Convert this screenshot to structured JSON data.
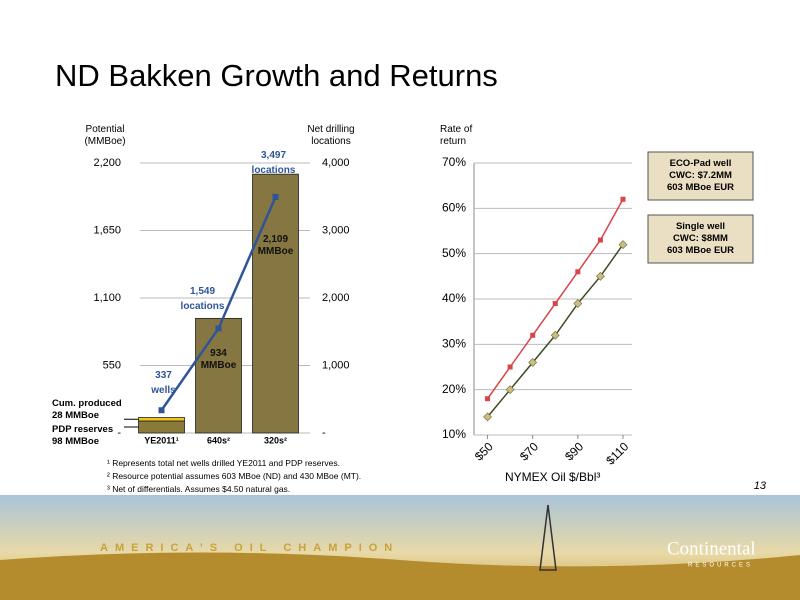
{
  "title": "ND Bakken Growth and Returns",
  "chart_data": [
    {
      "type": "bar",
      "ylabel": "Potential\n(MMBoe)",
      "y2label": "Net drilling\nlocations",
      "categories": [
        "YE2011¹",
        "640s²",
        "320s²"
      ],
      "ylim": [
        0,
        2200
      ],
      "yticks": [
        {
          "value": 0,
          "label": "-"
        },
        550,
        {
          "value": 1100,
          "label": "1,100"
        },
        {
          "value": 1650,
          "label": "1,650"
        },
        {
          "value": 2200,
          "label": "2,200"
        }
      ],
      "y2lim": [
        0,
        4000
      ],
      "y2ticks": [
        {
          "value": 0,
          "label": "-"
        },
        {
          "value": 1000,
          "label": "1,000"
        },
        {
          "value": 2000,
          "label": "2,000"
        },
        {
          "value": 3000,
          "label": "3,000"
        },
        {
          "value": 4000,
          "label": "4,000"
        }
      ],
      "grid": true,
      "series": [
        {
          "color": "#8a7a3a",
          "values": [
            98,
            null,
            null
          ],
          "value_labels": [
            "PDP reserves\n98 MMBoe",
            null,
            null
          ]
        },
        {
          "color": "#f2c31a",
          "values": [
            28,
            null,
            null
          ],
          "value_labels": [
            "Cum. produced\n28 MMBoe",
            null,
            null
          ]
        },
        {
          "color": "#857642",
          "values": [
            null,
            934,
            2109
          ],
          "value_labels": [
            null,
            "934\nMMBoe",
            "2,109\nMMBoe"
          ]
        },
        {
          "type": "line",
          "axis": "y2",
          "color": "#2f5597",
          "values": [
            337,
            1549,
            3497
          ],
          "value_labels": [
            "337\nwells",
            "1,549\nlocations",
            "3,497\nlocations"
          ]
        }
      ],
      "footnotes": [
        "¹ Represents total net wells drilled  YE2011 and PDP reserves.",
        "² Resource potential assumes 603 MBoe (ND) and 430 MBoe (MT).",
        "³ Net of differentials. Assumes $4.50 natural gas."
      ]
    },
    {
      "type": "line",
      "ylabel": "Rate of\nreturn",
      "xlabel": "NYMEX Oil $/Bbl³",
      "xlim": [
        44,
        114
      ],
      "xticks": [
        {
          "value": 50,
          "label": "$50"
        },
        {
          "value": 70,
          "label": "$70"
        },
        {
          "value": 90,
          "label": "$90"
        },
        {
          "value": 110,
          "label": "$110"
        }
      ],
      "ylim": [
        10,
        70
      ],
      "yticks": [
        {
          "value": 10,
          "label": "10%"
        },
        {
          "value": 20,
          "label": "20%"
        },
        {
          "value": 30,
          "label": "30%"
        },
        {
          "value": 40,
          "label": "40%"
        },
        {
          "value": 50,
          "label": "50%"
        },
        {
          "value": 60,
          "label": "60%"
        },
        {
          "value": 70,
          "label": "70%"
        }
      ],
      "grid": true,
      "x": [
        50,
        60,
        70,
        80,
        90,
        100,
        110
      ],
      "series": [
        {
          "name": "ECO-Pad well\nCWC: $7.2MM\n603 MBoe EUR",
          "color": "#d9434a",
          "marker": "square",
          "values": [
            18,
            25,
            32,
            39,
            46,
            53,
            62
          ]
        },
        {
          "name": "Single well\nCWC: $8MM\n603 MBoe EUR",
          "color": "#3d4a22",
          "marker": "diamond",
          "values": [
            14,
            20,
            26,
            32,
            39,
            45,
            52
          ]
        }
      ]
    }
  ],
  "page_number": "13",
  "banner": {
    "slogan": "AMERICA’S OIL CHAMPION",
    "brand": "Continental",
    "brand_sub": "RESOURCES"
  }
}
